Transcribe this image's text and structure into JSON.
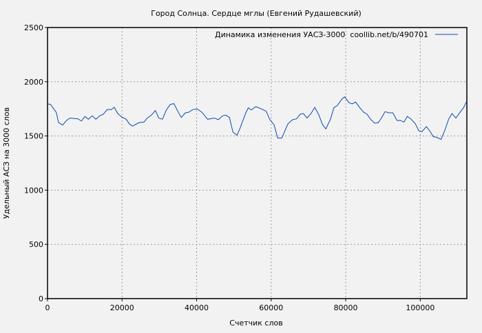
{
  "chart_data": {
    "type": "line",
    "title": "Город Солнца. Сердце мглы (Евгений Рудашевский)",
    "xlabel": "Счетчик слов",
    "ylabel": "Удельный АСЗ на 3000 слов",
    "xlim": [
      0,
      112500
    ],
    "ylim": [
      0,
      2500
    ],
    "xticks": [
      0,
      20000,
      40000,
      60000,
      80000,
      100000
    ],
    "yticks": [
      0,
      500,
      1000,
      1500,
      2000,
      2500
    ],
    "grid": true,
    "legend_position": "top-right",
    "line_color": "#0a48b0",
    "series": [
      {
        "name": "Динамика изменения УАСЗ-3000  coollib.net/b/490701",
        "x": [
          0,
          800,
          1700,
          2350,
          2950,
          4060,
          5100,
          6000,
          8180,
          9100,
          10030,
          10950,
          12000,
          12990,
          14030,
          14960,
          16000,
          17120,
          17910,
          18840,
          19890,
          21100,
          22030,
          22840,
          24500,
          25900,
          26770,
          27880,
          28930,
          29860,
          30840,
          31890,
          32930,
          33920,
          34950,
          35880,
          36990,
          37850,
          38960,
          40190,
          41420,
          42970,
          44800,
          45850,
          46960,
          47880,
          48800,
          49730,
          50780,
          51570,
          53120,
          53860,
          54650,
          55890,
          57430,
          58670,
          59590,
          60820,
          61740,
          62850,
          64510,
          65750,
          66800,
          67770,
          68640,
          69620,
          70680,
          71710,
          72820,
          73750,
          74670,
          75900,
          76820,
          77750,
          78980,
          79720,
          80830,
          81750,
          82670,
          83780,
          84820,
          85740,
          86670,
          87720,
          88700,
          89570,
          90550,
          91600,
          92650,
          93760,
          94680,
          95610,
          96530,
          97460,
          98680,
          99600,
          100410,
          101640,
          102500,
          103480,
          104530,
          105580,
          106560,
          107610,
          108530,
          109570,
          110680,
          111610,
          112350
        ],
        "y": [
          1796,
          1791,
          1749,
          1718,
          1624,
          1601,
          1643,
          1665,
          1658,
          1637,
          1680,
          1654,
          1686,
          1654,
          1686,
          1700,
          1743,
          1743,
          1764,
          1707,
          1675,
          1654,
          1607,
          1591,
          1622,
          1628,
          1665,
          1692,
          1734,
          1665,
          1654,
          1739,
          1791,
          1798,
          1728,
          1671,
          1713,
          1718,
          1743,
          1749,
          1718,
          1654,
          1665,
          1650,
          1686,
          1692,
          1671,
          1538,
          1506,
          1565,
          1707,
          1760,
          1739,
          1770,
          1749,
          1728,
          1654,
          1601,
          1480,
          1480,
          1612,
          1650,
          1658,
          1700,
          1707,
          1665,
          1707,
          1764,
          1692,
          1607,
          1565,
          1654,
          1760,
          1781,
          1840,
          1861,
          1808,
          1796,
          1813,
          1760,
          1718,
          1700,
          1654,
          1618,
          1622,
          1665,
          1724,
          1713,
          1713,
          1643,
          1643,
          1628,
          1680,
          1658,
          1612,
          1548,
          1538,
          1586,
          1548,
          1495,
          1485,
          1468,
          1548,
          1654,
          1707,
          1665,
          1718,
          1760,
          1813
        ]
      }
    ]
  }
}
